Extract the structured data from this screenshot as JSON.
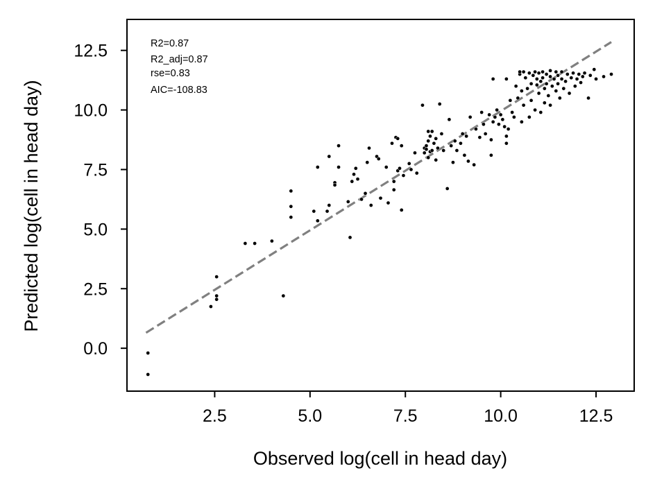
{
  "chart_data": {
    "type": "scatter",
    "title": "",
    "xlabel": "Observed log(cell in head day)",
    "ylabel": "Predicted log(cell in head day)",
    "xlim": [
      0.2,
      13.5
    ],
    "ylim": [
      -1.8,
      13.8
    ],
    "x_ticks": [
      2.5,
      5.0,
      7.5,
      10.0,
      12.5
    ],
    "x_tick_labels": [
      "2.5",
      "5.0",
      "7.5",
      "10.0",
      "12.5"
    ],
    "y_ticks": [
      0.0,
      2.5,
      5.0,
      7.5,
      10.0,
      12.5
    ],
    "y_tick_labels": [
      "0.0",
      "2.5",
      "5.0",
      "7.5",
      "10.0",
      "12.5"
    ],
    "grid": false,
    "legend": "none",
    "annotations": [
      "R2=0.87",
      "R2_adj=0.87",
      "rse=0.83",
      "AIC=-108.83"
    ],
    "reference_line": {
      "style": "dashed",
      "color": "#808080",
      "x": [
        0.7,
        12.9
      ],
      "y": [
        0.65,
        12.85
      ]
    },
    "point_color": "#000000",
    "points": [
      [
        0.75,
        -0.2
      ],
      [
        0.75,
        -1.1
      ],
      [
        2.4,
        1.75
      ],
      [
        2.55,
        2.2
      ],
      [
        2.55,
        2.05
      ],
      [
        2.55,
        3.0
      ],
      [
        3.3,
        4.4
      ],
      [
        3.55,
        4.4
      ],
      [
        4.0,
        4.5
      ],
      [
        4.3,
        2.2
      ],
      [
        4.5,
        6.6
      ],
      [
        4.5,
        5.95
      ],
      [
        4.5,
        5.5
      ],
      [
        5.1,
        5.75
      ],
      [
        5.2,
        7.6
      ],
      [
        5.2,
        5.35
      ],
      [
        5.45,
        5.75
      ],
      [
        5.5,
        8.05
      ],
      [
        5.5,
        6.0
      ],
      [
        5.65,
        6.95
      ],
      [
        5.65,
        6.85
      ],
      [
        5.75,
        8.5
      ],
      [
        5.75,
        7.6
      ],
      [
        6.0,
        6.15
      ],
      [
        6.05,
        4.65
      ],
      [
        6.1,
        7.0
      ],
      [
        6.15,
        7.3
      ],
      [
        6.2,
        7.55
      ],
      [
        6.25,
        7.1
      ],
      [
        6.35,
        6.25
      ],
      [
        6.45,
        6.5
      ],
      [
        6.5,
        7.8
      ],
      [
        6.55,
        8.4
      ],
      [
        6.6,
        6.0
      ],
      [
        6.75,
        8.05
      ],
      [
        6.8,
        7.95
      ],
      [
        6.85,
        6.3
      ],
      [
        7.0,
        7.6
      ],
      [
        7.05,
        6.1
      ],
      [
        7.15,
        8.6
      ],
      [
        7.2,
        7.0
      ],
      [
        7.2,
        6.65
      ],
      [
        7.25,
        8.85
      ],
      [
        7.3,
        8.8
      ],
      [
        7.3,
        7.45
      ],
      [
        7.35,
        7.55
      ],
      [
        7.4,
        8.5
      ],
      [
        7.4,
        5.8
      ],
      [
        7.45,
        7.25
      ],
      [
        7.6,
        7.75
      ],
      [
        7.65,
        7.5
      ],
      [
        7.75,
        8.2
      ],
      [
        7.8,
        7.35
      ],
      [
        7.95,
        10.2
      ],
      [
        8.0,
        8.2
      ],
      [
        8.0,
        8.4
      ],
      [
        8.05,
        8.5
      ],
      [
        8.05,
        8.35
      ],
      [
        8.1,
        8.7
      ],
      [
        8.1,
        9.1
      ],
      [
        8.1,
        8.0
      ],
      [
        8.15,
        8.9
      ],
      [
        8.15,
        8.25
      ],
      [
        8.2,
        8.3
      ],
      [
        8.2,
        9.1
      ],
      [
        8.25,
        8.6
      ],
      [
        8.3,
        8.8
      ],
      [
        8.3,
        7.9
      ],
      [
        8.35,
        8.4
      ],
      [
        8.4,
        10.25
      ],
      [
        8.45,
        9.0
      ],
      [
        8.5,
        8.3
      ],
      [
        8.6,
        6.7
      ],
      [
        8.65,
        9.6
      ],
      [
        8.7,
        8.5
      ],
      [
        8.75,
        7.8
      ],
      [
        8.8,
        8.7
      ],
      [
        8.85,
        8.3
      ],
      [
        8.95,
        8.6
      ],
      [
        9.0,
        9.0
      ],
      [
        9.05,
        8.1
      ],
      [
        9.1,
        8.9
      ],
      [
        9.15,
        7.85
      ],
      [
        9.2,
        9.7
      ],
      [
        9.3,
        7.7
      ],
      [
        9.35,
        9.2
      ],
      [
        9.45,
        8.85
      ],
      [
        9.5,
        9.9
      ],
      [
        9.55,
        9.4
      ],
      [
        9.6,
        9.0
      ],
      [
        9.7,
        9.8
      ],
      [
        9.75,
        8.75
      ],
      [
        9.75,
        8.1
      ],
      [
        9.8,
        9.5
      ],
      [
        9.8,
        11.3
      ],
      [
        9.85,
        9.7
      ],
      [
        9.9,
        10.0
      ],
      [
        9.95,
        9.4
      ],
      [
        10.0,
        9.8
      ],
      [
        10.05,
        9.6
      ],
      [
        10.1,
        9.3
      ],
      [
        10.15,
        8.9
      ],
      [
        10.15,
        8.6
      ],
      [
        10.15,
        11.3
      ],
      [
        10.2,
        9.2
      ],
      [
        10.25,
        10.4
      ],
      [
        10.3,
        9.9
      ],
      [
        10.35,
        9.7
      ],
      [
        10.4,
        11.0
      ],
      [
        10.45,
        10.5
      ],
      [
        10.5,
        11.5
      ],
      [
        10.5,
        11.6
      ],
      [
        10.55,
        10.8
      ],
      [
        10.55,
        9.5
      ],
      [
        10.6,
        10.2
      ],
      [
        10.6,
        11.6
      ],
      [
        10.65,
        11.35
      ],
      [
        10.7,
        10.9
      ],
      [
        10.75,
        11.55
      ],
      [
        10.75,
        9.7
      ],
      [
        10.8,
        11.1
      ],
      [
        10.8,
        10.4
      ],
      [
        10.85,
        11.45
      ],
      [
        10.9,
        11.6
      ],
      [
        10.9,
        10.0
      ],
      [
        10.95,
        11.3
      ],
      [
        10.95,
        11.05
      ],
      [
        11.0,
        11.55
      ],
      [
        11.0,
        10.7
      ],
      [
        11.05,
        11.2
      ],
      [
        11.05,
        9.9
      ],
      [
        11.1,
        11.6
      ],
      [
        11.1,
        11.35
      ],
      [
        11.15,
        10.9
      ],
      [
        11.15,
        10.3
      ],
      [
        11.2,
        11.5
      ],
      [
        11.2,
        11.1
      ],
      [
        11.25,
        10.6
      ],
      [
        11.3,
        11.4
      ],
      [
        11.3,
        11.65
      ],
      [
        11.3,
        10.2
      ],
      [
        11.35,
        11.0
      ],
      [
        11.4,
        11.3
      ],
      [
        11.45,
        10.8
      ],
      [
        11.45,
        11.6
      ],
      [
        11.5,
        11.45
      ],
      [
        11.5,
        11.1
      ],
      [
        11.55,
        10.5
      ],
      [
        11.6,
        11.3
      ],
      [
        11.6,
        11.6
      ],
      [
        11.65,
        10.9
      ],
      [
        11.7,
        11.2
      ],
      [
        11.75,
        11.5
      ],
      [
        11.8,
        10.7
      ],
      [
        11.85,
        11.35
      ],
      [
        11.9,
        11.55
      ],
      [
        11.95,
        11.0
      ],
      [
        12.0,
        11.3
      ],
      [
        12.05,
        11.5
      ],
      [
        12.1,
        11.15
      ],
      [
        12.15,
        11.4
      ],
      [
        12.2,
        11.55
      ],
      [
        12.3,
        10.5
      ],
      [
        12.35,
        11.45
      ],
      [
        12.45,
        11.7
      ],
      [
        12.5,
        11.3
      ],
      [
        12.7,
        11.4
      ],
      [
        12.9,
        11.5
      ]
    ]
  }
}
